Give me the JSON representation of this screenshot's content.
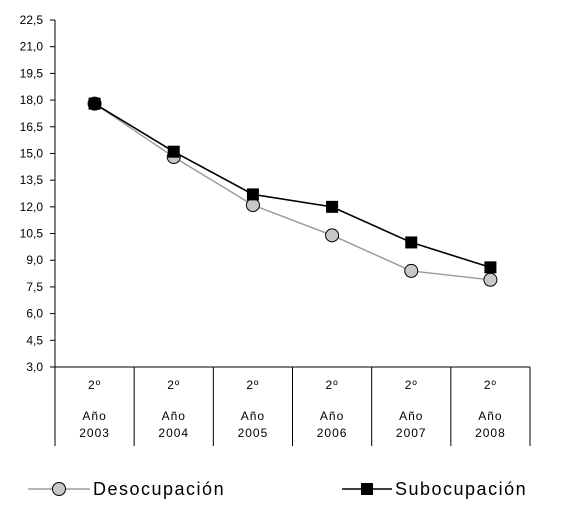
{
  "chart_data": {
    "type": "line",
    "categories": [
      {
        "line1": "2º",
        "line2": "Año",
        "line3": "2003"
      },
      {
        "line1": "2º",
        "line2": "Año",
        "line3": "2004"
      },
      {
        "line1": "2º",
        "line2": "Año",
        "line3": "2005"
      },
      {
        "line1": "2º",
        "line2": "Año",
        "line3": "2006"
      },
      {
        "line1": "2º",
        "line2": "Año",
        "line3": "2007"
      },
      {
        "line1": "2º",
        "line2": "Año",
        "line3": "2008"
      }
    ],
    "y_ticks": [
      "3,0",
      "4,5",
      "6,0",
      "7,5",
      "9,0",
      "10,5",
      "12,0",
      "13,5",
      "15,0",
      "16,5",
      "18,0",
      "19,5",
      "21,0",
      "22,5"
    ],
    "ylim": [
      3,
      22.5
    ],
    "series": [
      {
        "name": "Desocupación",
        "values": [
          17.8,
          14.8,
          12.1,
          10.4,
          8.4,
          7.9
        ],
        "line_color": "#9a9a9a",
        "marker": "circle",
        "marker_fill": "#c8c8c8"
      },
      {
        "name": "Subocupación",
        "values": [
          17.8,
          15.1,
          12.7,
          12.0,
          10.0,
          8.6
        ],
        "line_color": "#000000",
        "marker": "square",
        "marker_fill": "#000000"
      }
    ],
    "grid": false,
    "legend_position": "bottom"
  }
}
